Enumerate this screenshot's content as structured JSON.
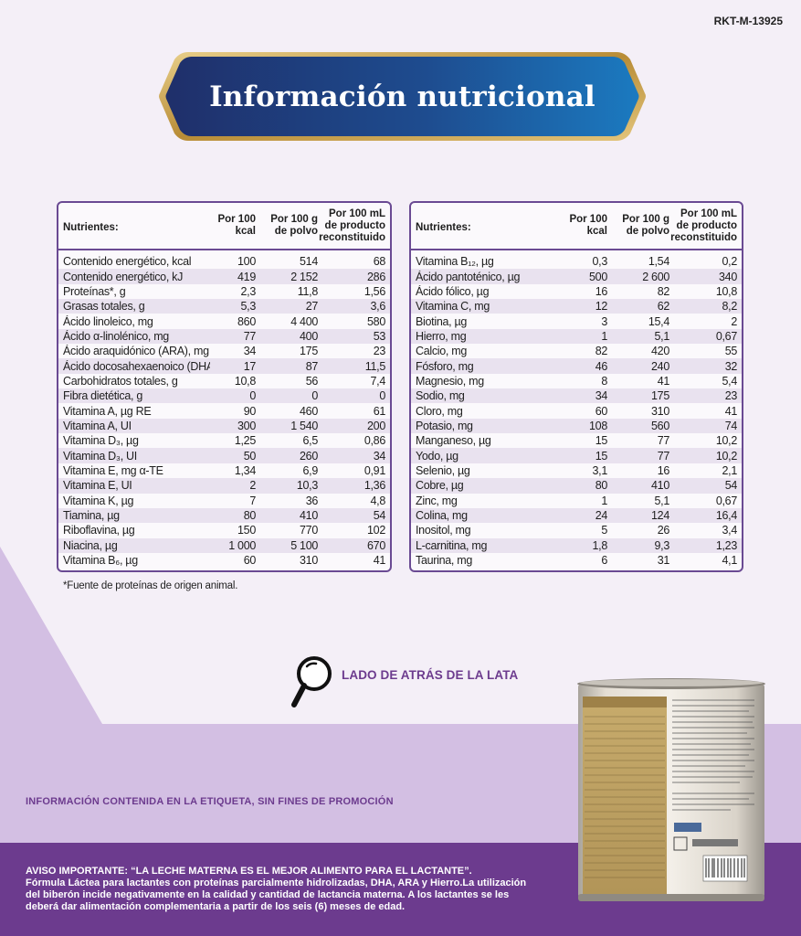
{
  "code": "RKT-M-13925",
  "banner": {
    "title": "Información nutricional"
  },
  "table_left": {
    "headers": [
      "Nutrientes:",
      "Por 100 kcal",
      "Por 100 g de polvo",
      "Por 100 mL de producto reconstituido"
    ],
    "rows": [
      [
        "Contenido energético, kcal",
        "100",
        "514",
        "68"
      ],
      [
        "Contenido energético, kJ",
        "419",
        "2 152",
        "286"
      ],
      [
        "Proteínas*, g",
        "2,3",
        "11,8",
        "1,56"
      ],
      [
        "Grasas totales, g",
        "5,3",
        "27",
        "3,6"
      ],
      [
        "Ácido linoleico, mg",
        "860",
        "4 400",
        "580"
      ],
      [
        "Ácido α-linolénico, mg",
        "77",
        "400",
        "53"
      ],
      [
        "Ácido araquidónico (ARA), mg",
        "34",
        "175",
        "23"
      ],
      [
        "Ácido docosahexaenoico (DHA), mg",
        "17",
        "87",
        "11,5"
      ],
      [
        "Carbohidratos totales, g",
        "10,8",
        "56",
        "7,4"
      ],
      [
        "Fibra dietética, g",
        "0",
        "0",
        "0"
      ],
      [
        "Vitamina A, µg RE",
        "90",
        "460",
        "61"
      ],
      [
        "Vitamina A, UI",
        "300",
        "1 540",
        "200"
      ],
      [
        "Vitamina D₃, µg",
        "1,25",
        "6,5",
        "0,86"
      ],
      [
        "Vitamina D₃, UI",
        "50",
        "260",
        "34"
      ],
      [
        "Vitamina E, mg α-TE",
        "1,34",
        "6,9",
        "0,91"
      ],
      [
        "Vitamina E, UI",
        "2",
        "10,3",
        "1,36"
      ],
      [
        "Vitamina K, µg",
        "7",
        "36",
        "4,8"
      ],
      [
        "Tiamina, µg",
        "80",
        "410",
        "54"
      ],
      [
        "Riboflavina, µg",
        "150",
        "770",
        "102"
      ],
      [
        "Niacina, µg",
        "1 000",
        "5 100",
        "670"
      ],
      [
        "Vitamina B₆, µg",
        "60",
        "310",
        "41"
      ]
    ]
  },
  "table_right": {
    "headers": [
      "Nutrientes:",
      "Por 100 kcal",
      "Por 100 g de polvo",
      "Por 100 mL de producto reconstituido"
    ],
    "rows": [
      [
        "Vitamina B₁₂, µg",
        "0,3",
        "1,54",
        "0,2"
      ],
      [
        "Ácido pantoténico, µg",
        "500",
        "2 600",
        "340"
      ],
      [
        "Ácido fólico, µg",
        "16",
        "82",
        "10,8"
      ],
      [
        "Vitamina C, mg",
        "12",
        "62",
        "8,2"
      ],
      [
        "Biotina, µg",
        "3",
        "15,4",
        "2"
      ],
      [
        "Hierro, mg",
        "1",
        "5,1",
        "0,67"
      ],
      [
        "Calcio, mg",
        "82",
        "420",
        "55"
      ],
      [
        "Fósforo, mg",
        "46",
        "240",
        "32"
      ],
      [
        "Magnesio, mg",
        "8",
        "41",
        "5,4"
      ],
      [
        "Sodio, mg",
        "34",
        "175",
        "23"
      ],
      [
        "Cloro, mg",
        "60",
        "310",
        "41"
      ],
      [
        "Potasio, mg",
        "108",
        "560",
        "74"
      ],
      [
        "Manganeso, µg",
        "15",
        "77",
        "10,2"
      ],
      [
        "Yodo, µg",
        "15",
        "77",
        "10,2"
      ],
      [
        "Selenio, µg",
        "3,1",
        "16",
        "2,1"
      ],
      [
        "Cobre, µg",
        "80",
        "410",
        "54"
      ],
      [
        "Zinc, mg",
        "1",
        "5,1",
        "0,67"
      ],
      [
        "Colina, mg",
        "24",
        "124",
        "16,4"
      ],
      [
        "Inositol, mg",
        "5",
        "26",
        "3,4"
      ],
      [
        "L-carnitina, mg",
        "1,8",
        "9,3",
        "1,23"
      ],
      [
        "Taurina, mg",
        "6",
        "31",
        "4,1"
      ]
    ]
  },
  "footnote": "*Fuente de proteínas de origen animal.",
  "back_of_can_label": "LADO DE ATRÁS DE LA LATA",
  "label_info": "INFORMACIÓN CONTENIDA EN LA ETIQUETA, SIN FINES DE PROMOCIÓN",
  "aviso": [
    "AVISO IMPORTANTE: “LA LECHE MATERNA ES EL MEJOR ALIMENTO PARA EL LACTANTE”.",
    " Fórmula Láctea para lactantes con proteínas parcialmente hidrolizadas, DHA, ARA y Hierro.La utilización",
    "del biberón incide negativamente en la calidad y cantidad de lactancia materna. A los lactantes se les",
    "deberá dar alimentación complementaria a partir de los seis (6) meses de edad."
  ],
  "colors": {
    "page_bg": "#f4eff7",
    "accent_purple": "#6c3b8e",
    "lilac": "#d3bfe3",
    "banner_dark": "#1f2f6a",
    "banner_light": "#1b7ac0",
    "gold": "#c9a24a"
  },
  "icons": [
    "magnifier-icon",
    "product-can-image"
  ]
}
